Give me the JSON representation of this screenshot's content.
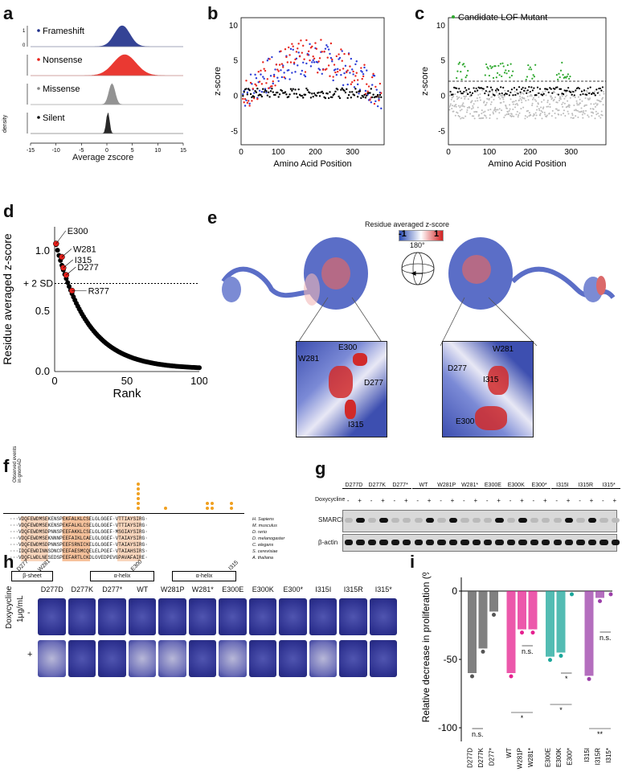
{
  "panels": {
    "a": "a",
    "b": "b",
    "c": "c",
    "d": "d",
    "e": "e",
    "f": "f",
    "g": "g",
    "h": "h",
    "i": "i"
  },
  "panel_a": {
    "rows": [
      {
        "name": "Frameshift",
        "color": "#1f2f8a",
        "mu": 3.0,
        "sd": 1.5
      },
      {
        "name": "Nonsense",
        "color": "#e8241c",
        "mu": 3.5,
        "sd": 2.2
      },
      {
        "name": "Missense",
        "color": "#888888",
        "mu": 1.0,
        "sd": 0.6
      },
      {
        "name": "Silent",
        "color": "#111111",
        "mu": 0.2,
        "sd": 0.3
      }
    ],
    "xticks": [
      "-15",
      "-10",
      "-5",
      "0",
      "5",
      "10",
      "15"
    ],
    "xlabel": "Average zscore",
    "ylabel": "density",
    "ytick_top": "1",
    "ytick_bottom": "0"
  },
  "chart_data": [
    {
      "type": "scatter",
      "title": "",
      "xlabel": "Amino Acid Position",
      "ylabel": "z-score",
      "xlim": [
        0,
        385
      ],
      "ylim": [
        -7,
        11
      ],
      "xticks": [
        "0",
        "100",
        "200",
        "300"
      ],
      "yticks": [
        "10",
        "5",
        "0",
        "-5"
      ],
      "series": [
        {
          "name": "Frameshift",
          "color": "#2b3bd6",
          "trend": "hump",
          "peak": 5.0
        },
        {
          "name": "Nonsense",
          "color": "#e8241c",
          "trend": "hump",
          "peak": 5.5
        },
        {
          "name": "Silent",
          "color": "#000000",
          "trend": "flat",
          "peak": 0.3
        }
      ]
    },
    {
      "type": "scatter",
      "title": "",
      "xlabel": "Amino Acid Position",
      "ylabel": "z-score",
      "xlim": [
        0,
        385
      ],
      "ylim": [
        -7,
        11
      ],
      "xticks": [
        "0",
        "100",
        "200",
        "300"
      ],
      "yticks": [
        "10",
        "5",
        "0",
        "-5"
      ],
      "threshold": 2,
      "legend": "Candidate LOF Mutant",
      "series": [
        {
          "name": "Candidate LOF Mutant",
          "color": "#2ea82e"
        },
        {
          "name": "Missense",
          "color": "#bbbbbb"
        },
        {
          "name": "Silent",
          "color": "#000000"
        }
      ]
    },
    {
      "type": "scatter",
      "title": "",
      "xlabel": "Rank",
      "ylabel": "Residue averaged z-score",
      "xlim": [
        0,
        100
      ],
      "ylim": [
        0,
        1.2
      ],
      "xticks": [
        "0",
        "50",
        "100"
      ],
      "yticks": [
        "1.0",
        "0.5",
        "0.0"
      ],
      "threshold": 0.73,
      "threshold_label": "+ 2 SD",
      "highlighted": [
        {
          "label": "E300",
          "rank": 1,
          "value": 1.06
        },
        {
          "label": "W281",
          "rank": 5,
          "value": 0.95
        },
        {
          "label": "I315",
          "rank": 6,
          "value": 0.86
        },
        {
          "label": "D277",
          "rank": 8,
          "value": 0.8
        },
        {
          "label": "R377",
          "rank": 12,
          "value": 0.67
        }
      ]
    },
    {
      "type": "bar",
      "title": "",
      "ylabel": "Relative decrease in proliferation (%)",
      "ylim": [
        -110,
        10
      ],
      "yticks": [
        "0",
        "-50",
        "-100"
      ],
      "categories": [
        "D277D",
        "D277K",
        "D277*",
        "WT",
        "W281P",
        "W281*",
        "E300E",
        "E300K",
        "E300*",
        "I315I",
        "I315R",
        "I315*"
      ],
      "values": [
        -60,
        -42,
        -15,
        -60,
        -28,
        -28,
        -48,
        -45,
        0,
        -62,
        -5,
        0
      ],
      "colors": [
        "#555555",
        "#555555",
        "#555555",
        "#e5208f",
        "#e5208f",
        "#e5208f",
        "#1aa69a",
        "#1aa69a",
        "#1aa69a",
        "#9b3ea8",
        "#9b3ea8",
        "#9b3ea8"
      ],
      "significance": [
        "n.s.",
        "*",
        "n.s.",
        "*",
        "*",
        "**",
        "n.s."
      ]
    }
  ],
  "panel_e": {
    "colorbar_title": "Residue averaged z-score",
    "colorbar_min": "-1",
    "colorbar_max": "1",
    "rotation": "180°",
    "inset_left_labels": [
      "E300",
      "W281",
      "D277",
      "I315"
    ],
    "inset_right_labels": [
      "W281",
      "D277",
      "I315",
      "E300"
    ]
  },
  "panel_f": {
    "gnomad_label": "Observed events in gnomAD",
    "species": [
      "H. Sapiens",
      "M. musculus",
      "D. rerio",
      "D. melanogaster",
      "C. elegans",
      "S. cerevisiae",
      "A. thaliana"
    ],
    "sequences": [
      "···VDQFEWDMSEKENSPEKFALKLCSELGLGGEF·VTTIAYSIRG·",
      "···VDQFEWDMSEKENSPEKFALKLCSELGLGGEF·VTTIAYSIRG·",
      "···VDQFEWDMSDPNNSPEEFAKKLCSELGLGGEF·MSGIAYSIRG·",
      "···VDQFEWDMSEKNNNPEEFAIKLCAELGLGGEF·VTAIAYSIRG·",
      "···VDQFEWDMSDPNNSPEEFSRNICKELGLGGEF·VTAIAYSIRG·",
      "···IDQFEWDINNSDNCPEEFAESMCQELELPGEF·VTAIAHSIRS·",
      "···VDQFLWDLNESEDSPEEFARTLCKDLGVEDPEVGPAVAFAIRE·"
    ],
    "residue_labels": [
      "D277",
      "W281",
      "E300",
      "I315"
    ],
    "structures": [
      "β-sheet",
      "α-helix",
      "α-helix"
    ]
  },
  "panel_g": {
    "lanes": [
      "D277D",
      "D277K",
      "D277*",
      "WT",
      "W281P",
      "W281*",
      "E300E",
      "E300K",
      "E300*",
      "I315I",
      "I315R",
      "I315*"
    ],
    "dox_label": "Doxycycline",
    "minus": "-",
    "plus": "+",
    "row1": "SMARCB1",
    "row2": "β-actin"
  },
  "panel_h": {
    "lanes": [
      "D277D",
      "D277K",
      "D277*",
      "WT",
      "W281P",
      "W281*",
      "E300E",
      "E300K",
      "E300*",
      "I315I",
      "I315R",
      "I315*"
    ],
    "dox_label": "Doxycycline",
    "dox_conc": "1μg/mL",
    "minus": "-",
    "plus": "+"
  }
}
